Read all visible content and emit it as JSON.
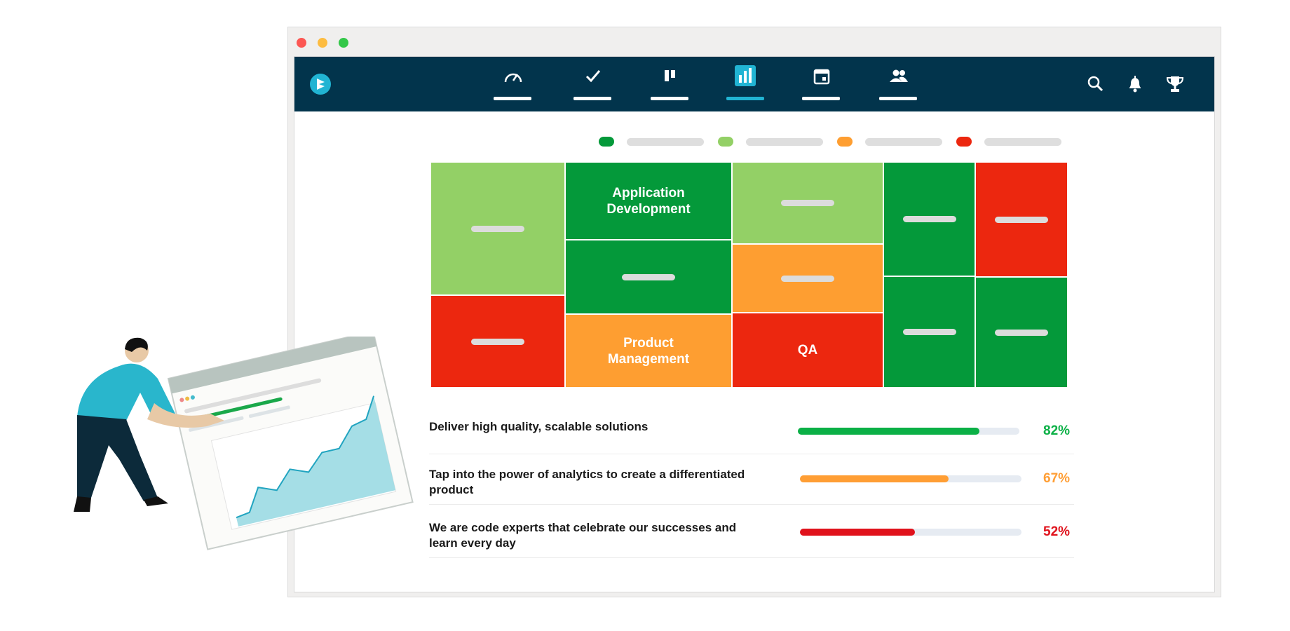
{
  "colors": {
    "header_bg": "#02344c",
    "accent": "#21b4d3",
    "light_green": "#93d066",
    "green": "#04993a",
    "orange": "#fe9e31",
    "red": "#ec270f"
  },
  "header": {
    "logo": "brand-logo-icon",
    "nav": [
      {
        "icon": "gauge-icon",
        "active": false
      },
      {
        "icon": "checkmark-icon",
        "active": false
      },
      {
        "icon": "board-icon",
        "active": false
      },
      {
        "icon": "bar-chart-icon",
        "active": true
      },
      {
        "icon": "calendar-icon",
        "active": false
      },
      {
        "icon": "team-icon",
        "active": false
      }
    ],
    "right_icons": [
      "search-icon",
      "bell-icon",
      "trophy-icon"
    ]
  },
  "legend": [
    "#04993a",
    "#93d066",
    "#fe9e31",
    "#ec270f"
  ],
  "treemap": {
    "labels": {
      "app_dev": "Application Development",
      "product_mgmt": "Product Management",
      "qa": "QA"
    }
  },
  "goals": [
    {
      "text": "Deliver high quality, scalable solutions",
      "percent": 82,
      "display": "82%",
      "color": "#0bb046"
    },
    {
      "text": "Tap into the power of analytics to create a differentiated product",
      "percent": 67,
      "display": "67%",
      "color": "#ff9e34"
    },
    {
      "text": "We are code experts that celebrate our successes and learn every day",
      "percent": 52,
      "display": "52%",
      "color": "#e0121c"
    }
  ]
}
